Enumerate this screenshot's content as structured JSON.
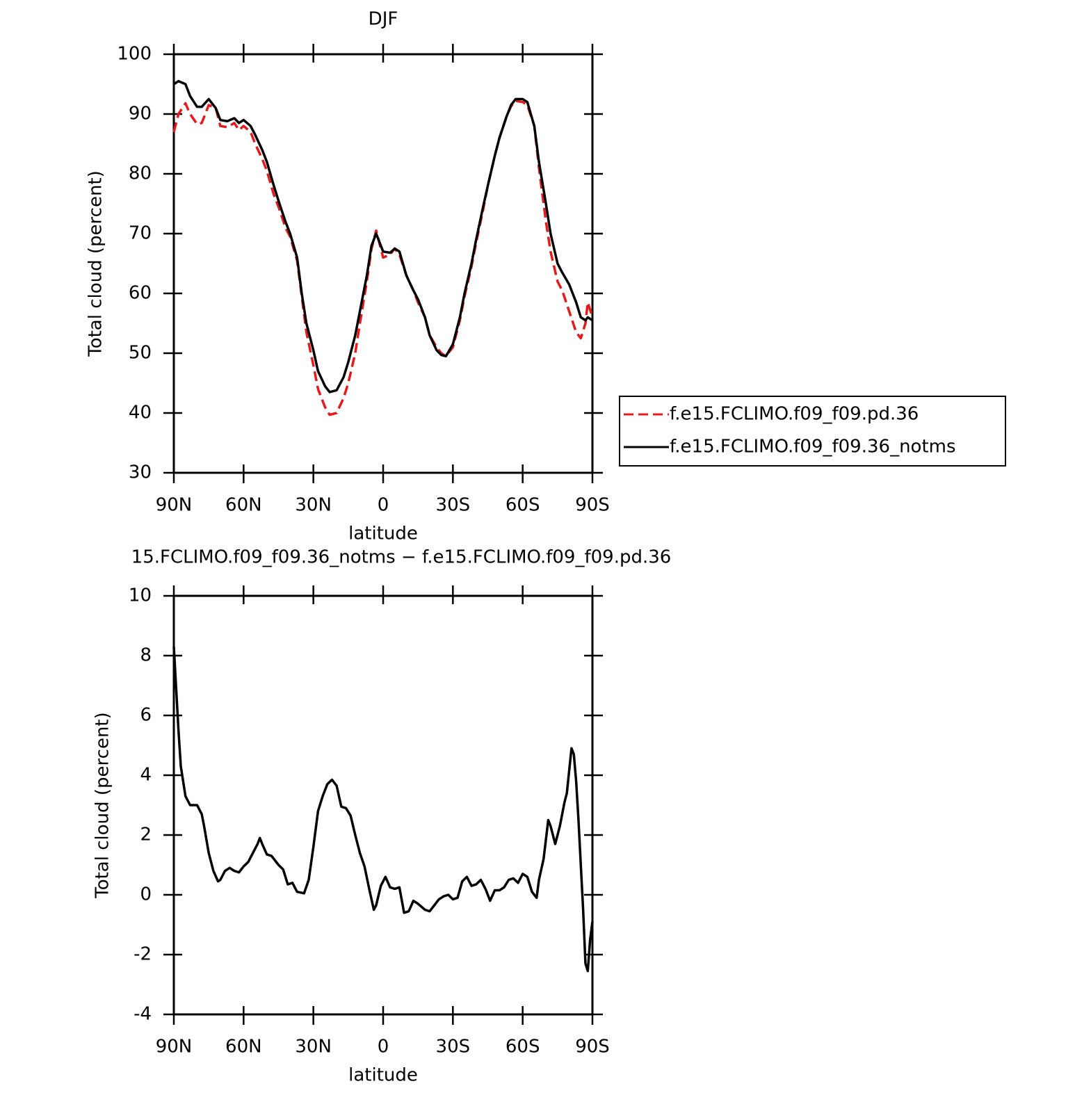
{
  "chart_data": [
    {
      "type": "line",
      "title": "DJF",
      "xlabel": "latitude",
      "ylabel": "Total cloud (percent)",
      "x": [
        90,
        88,
        85,
        83,
        80,
        78,
        75,
        72,
        70,
        67,
        64,
        62,
        60,
        57,
        55,
        52,
        50,
        47,
        45,
        42,
        40,
        37,
        35,
        33,
        30,
        28,
        25,
        23,
        20,
        17,
        15,
        12,
        10,
        7,
        5,
        3,
        0,
        -3,
        -5,
        -7,
        -10,
        -13,
        -15,
        -18,
        -20,
        -23,
        -25,
        -27,
        -30,
        -33,
        -35,
        -38,
        -40,
        -43,
        -45,
        -48,
        -50,
        -53,
        -55,
        -57,
        -60,
        -62,
        -65,
        -67,
        -70,
        -72,
        -75,
        -77,
        -80,
        -83,
        -85,
        -87,
        -88,
        -90
      ],
      "series": [
        {
          "name": "f.e15.FCLIMO.f09_f09.pd.36",
          "color": "#e41a1c",
          "style": "dashed",
          "values": [
            87,
            90,
            91.8,
            90,
            88.3,
            88.5,
            91.5,
            91,
            88,
            87.8,
            88.5,
            87.3,
            88,
            87,
            85,
            82.5,
            80.5,
            76.5,
            74.5,
            71,
            69.5,
            65.5,
            59.5,
            53.5,
            48,
            44,
            41,
            39.7,
            40,
            42.5,
            45,
            50,
            55,
            62,
            67.5,
            70.5,
            66,
            66.5,
            67.5,
            66.5,
            63,
            60.5,
            58.5,
            56,
            53,
            51,
            50,
            49.5,
            51,
            55.5,
            59.5,
            64.5,
            68.5,
            74,
            78,
            83,
            86,
            89.5,
            91.3,
            92.2,
            92,
            91.5,
            88,
            81,
            72,
            67,
            62,
            60.5,
            57,
            53.5,
            52.5,
            55,
            58.5,
            56
          ]
        },
        {
          "name": "f.e15.FCLIMO.f09_f09.36_notms",
          "color": "#000000",
          "style": "solid",
          "values": [
            95,
            95.5,
            95,
            93,
            91.2,
            91.2,
            92.5,
            91,
            89,
            88.8,
            89.3,
            88.5,
            89,
            88,
            86.5,
            84,
            82,
            78,
            75.5,
            72,
            70,
            66,
            60,
            55,
            50.5,
            47,
            44.5,
            43.5,
            43.8,
            46,
            48.5,
            53,
            57,
            63,
            68,
            70,
            67,
            66.8,
            67.5,
            67,
            63,
            60.5,
            59,
            56,
            53,
            50.5,
            49.7,
            49.5,
            51.5,
            56,
            60,
            65,
            69,
            74.5,
            78,
            83,
            86,
            89.5,
            91.5,
            92.5,
            92.5,
            92,
            88,
            82,
            75,
            70,
            65,
            63.5,
            61.5,
            58.5,
            56,
            55.5,
            56,
            55.5
          ]
        }
      ],
      "xlim": [
        90,
        -90
      ],
      "xticks": [
        {
          "value": 90,
          "label": "90N"
        },
        {
          "value": 60,
          "label": "60N"
        },
        {
          "value": 30,
          "label": "30N"
        },
        0,
        {
          "value": -30,
          "label": "30S"
        },
        {
          "value": -60,
          "label": "60S"
        },
        {
          "value": -90,
          "label": "90S"
        }
      ],
      "ylim": [
        30,
        100
      ],
      "yticks": [
        30,
        40,
        50,
        60,
        70,
        80,
        90,
        100
      ],
      "legend": "right"
    },
    {
      "type": "line",
      "title": "15.FCLIMO.f09_f09.36_notms − f.e15.FCLIMO.f09_f09.pd.36",
      "xlabel": "latitude",
      "ylabel": "Total cloud (percent)",
      "x": [
        90,
        88,
        87,
        85,
        83,
        80,
        78,
        77,
        75,
        73,
        71,
        70,
        68,
        66,
        64,
        62,
        60,
        58,
        56,
        54,
        53,
        52,
        50,
        48,
        45,
        43,
        41,
        39,
        37,
        34,
        32,
        30,
        28,
        26,
        24,
        22,
        20,
        18,
        16,
        14,
        12,
        10,
        8,
        6,
        4,
        3,
        1,
        -1,
        -3,
        -5,
        -7,
        -9,
        -11,
        -13,
        -15,
        -18,
        -20,
        -22,
        -24,
        -26,
        -28,
        -30,
        -32,
        -34,
        -36,
        -38,
        -40,
        -42,
        -44,
        -46,
        -48,
        -50,
        -52,
        -54,
        -56,
        -58,
        -60,
        -62,
        -64,
        -66,
        -67,
        -69,
        -71,
        -72,
        -74,
        -76,
        -78,
        -79,
        -81,
        -82,
        -83,
        -84,
        -86,
        -87,
        -88,
        -89,
        -90
      ],
      "series": [
        {
          "color": "#000000",
          "style": "solid",
          "values": [
            8.3,
            5.5,
            4.3,
            3.3,
            3,
            3,
            2.7,
            2.3,
            1.4,
            0.8,
            0.45,
            0.5,
            0.8,
            0.9,
            0.8,
            0.75,
            0.95,
            1.1,
            1.4,
            1.7,
            1.9,
            1.7,
            1.35,
            1.3,
            1,
            0.85,
            0.35,
            0.4,
            0.1,
            0.05,
            0.5,
            1.6,
            2.8,
            3.3,
            3.7,
            3.85,
            3.65,
            2.95,
            2.9,
            2.65,
            2,
            1.4,
            0.95,
            0.2,
            -0.5,
            -0.35,
            0.3,
            0.6,
            0.25,
            0.2,
            0.25,
            -0.6,
            -0.55,
            -0.2,
            -0.3,
            -0.5,
            -0.55,
            -0.35,
            -0.15,
            -0.05,
            0,
            -0.15,
            -0.1,
            0.45,
            0.6,
            0.3,
            0.35,
            0.5,
            0.2,
            -0.2,
            0.15,
            0.15,
            0.25,
            0.5,
            0.55,
            0.4,
            0.7,
            0.6,
            0.1,
            -0.1,
            0.5,
            1.2,
            2.5,
            2.3,
            1.7,
            2.3,
            3.1,
            3.4,
            4.9,
            4.7,
            3.8,
            2.5,
            -0.5,
            -2.3,
            -2.55,
            -1.5,
            -0.9
          ]
        }
      ],
      "xlim": [
        90,
        -90
      ],
      "xticks": [
        {
          "value": 90,
          "label": "90N"
        },
        {
          "value": 60,
          "label": "60N"
        },
        {
          "value": 30,
          "label": "30N"
        },
        0,
        {
          "value": -30,
          "label": "30S"
        },
        {
          "value": -60,
          "label": "60S"
        },
        {
          "value": -90,
          "label": "90S"
        }
      ],
      "ylim": [
        -4,
        10
      ],
      "yticks": [
        -4,
        -2,
        0,
        2,
        4,
        6,
        8,
        10
      ]
    }
  ]
}
